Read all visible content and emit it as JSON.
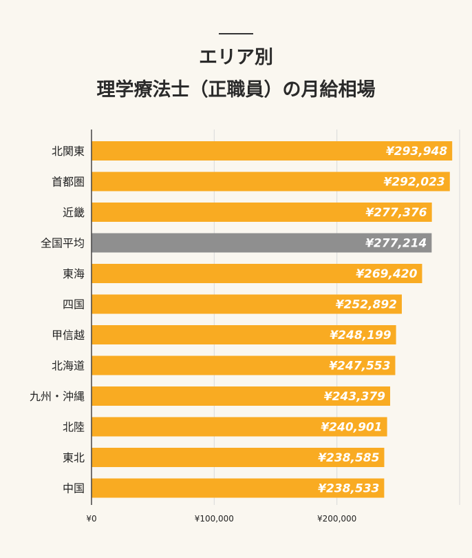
{
  "title_line1": "エリア別",
  "title_line2": "理学療法士（正職員）の月給相場",
  "colors": {
    "background": "#faf7f0",
    "bar": "#f9ab22",
    "highlight_bar": "#8f8f8f",
    "value_text": "#ffffff",
    "grid": "#d9d9d9",
    "axis": "#444444"
  },
  "chart_data": {
    "type": "bar",
    "orientation": "horizontal",
    "categories": [
      "北関東",
      "首都圏",
      "近畿",
      "全国平均",
      "東海",
      "四国",
      "甲信越",
      "北海道",
      "九州・沖縄",
      "北陸",
      "東北",
      "中国"
    ],
    "values": [
      293948,
      292023,
      277376,
      277214,
      269420,
      252892,
      248199,
      247553,
      243379,
      240901,
      238585,
      238533
    ],
    "value_labels": [
      "¥293,948",
      "¥292,023",
      "¥277,376",
      "¥277,214",
      "¥269,420",
      "¥252,892",
      "¥248,199",
      "¥247,553",
      "¥243,379",
      "¥240,901",
      "¥238,585",
      "¥238,533"
    ],
    "highlight_category": "全国平均",
    "xlim": [
      0,
      300000
    ],
    "xticks": [
      0,
      100000,
      200000
    ],
    "xtick_labels": [
      "¥0",
      "¥100,000",
      "¥200,000"
    ],
    "grid": true,
    "legend": false
  }
}
